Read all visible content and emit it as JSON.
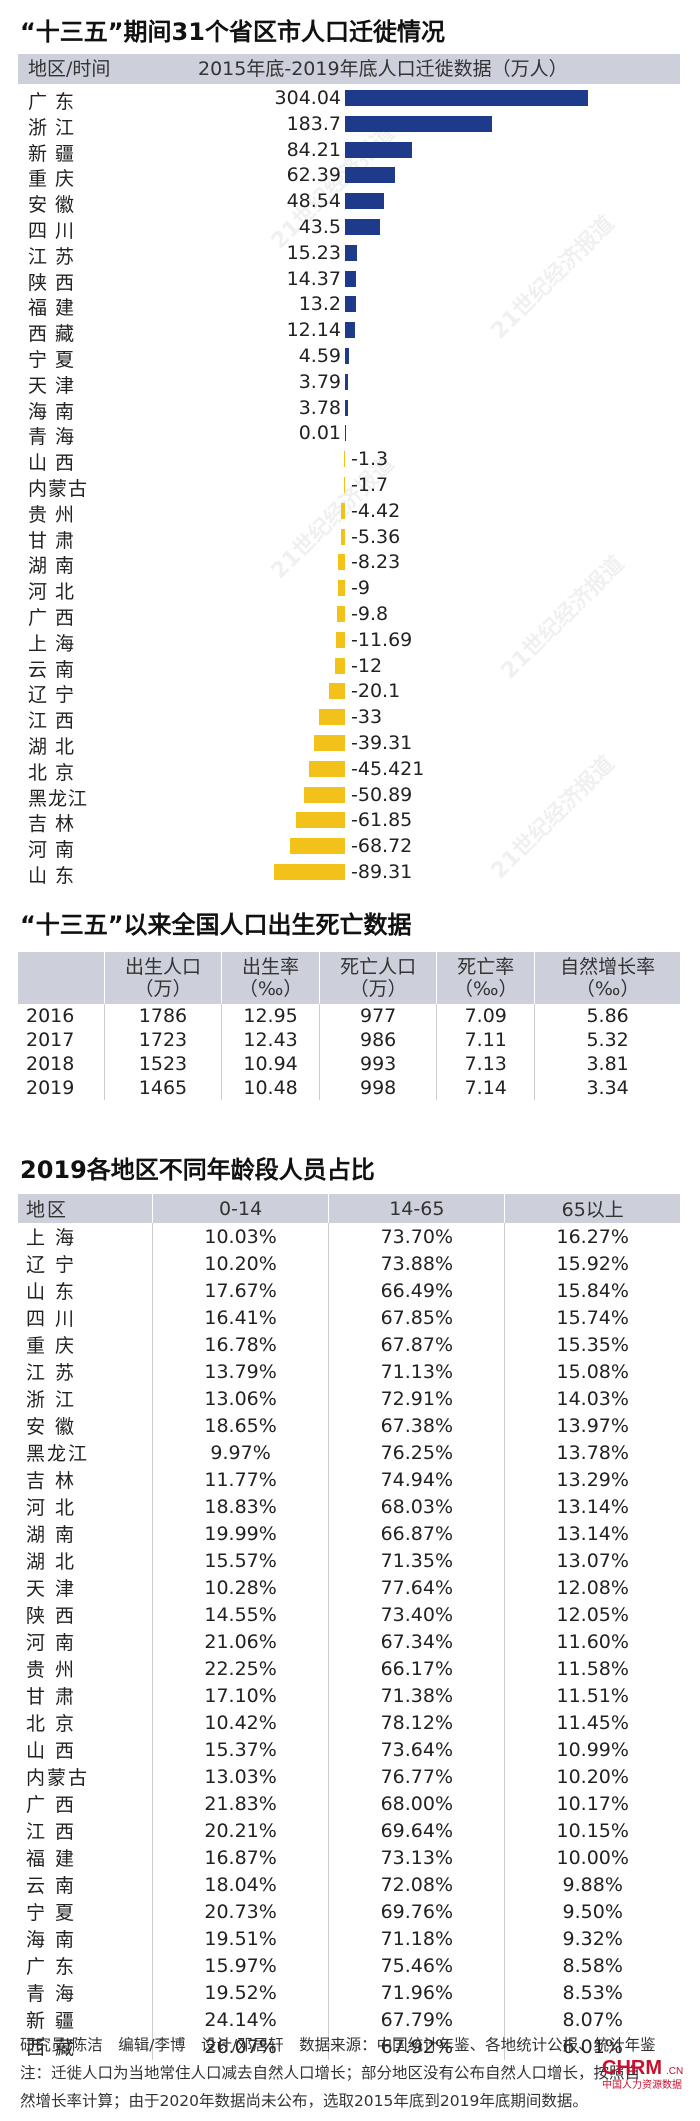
{
  "migration": {
    "title": "“十三五”期间31个省区市人口迁徙情况",
    "col_region": "地区/时间",
    "col_data": "2015年底-2019年底人口迁徙数据（万人）",
    "colors": {
      "positive": "#1e3a8a",
      "negative": "#f2c21b"
    }
  },
  "births": {
    "title": "“十三五”以来全国人口出生死亡数据",
    "headers": [
      {
        "l1": "",
        "l2": ""
      },
      {
        "l1": "出生人口",
        "l2": "（万）"
      },
      {
        "l1": "出生率",
        "l2": "（‰）"
      },
      {
        "l1": "死亡人口",
        "l2": "（万）"
      },
      {
        "l1": "死亡率",
        "l2": "（‰）"
      },
      {
        "l1": "自然增长率",
        "l2": "（‰）"
      }
    ],
    "rows": [
      [
        "2016",
        "1786",
        "12.95",
        "977",
        "7.09",
        "5.86"
      ],
      [
        "2017",
        "1723",
        "12.43",
        "986",
        "7.11",
        "5.32"
      ],
      [
        "2018",
        "1523",
        "10.94",
        "993",
        "7.13",
        "3.81"
      ],
      [
        "2019",
        "1465",
        "10.48",
        "998",
        "7.14",
        "3.34"
      ]
    ]
  },
  "age": {
    "title": "2019各地区不同年龄段人员占比",
    "headers": [
      "地区",
      "0-14",
      "14-65",
      "65以上"
    ],
    "rows": [
      [
        "上 海",
        "10.03%",
        "73.70%",
        "16.27%"
      ],
      [
        "辽 宁",
        "10.20%",
        "73.88%",
        "15.92%"
      ],
      [
        "山 东",
        "17.67%",
        "66.49%",
        "15.84%"
      ],
      [
        "四 川",
        "16.41%",
        "67.85%",
        "15.74%"
      ],
      [
        "重 庆",
        "16.78%",
        "67.87%",
        "15.35%"
      ],
      [
        "江 苏",
        "13.79%",
        "71.13%",
        "15.08%"
      ],
      [
        "浙 江",
        "13.06%",
        "72.91%",
        "14.03%"
      ],
      [
        "安 徽",
        "18.65%",
        "67.38%",
        "13.97%"
      ],
      [
        "黑龙江",
        "9.97%",
        "76.25%",
        "13.78%"
      ],
      [
        "吉 林",
        "11.77%",
        "74.94%",
        "13.29%"
      ],
      [
        "河 北",
        "18.83%",
        "68.03%",
        "13.14%"
      ],
      [
        "湖 南",
        "19.99%",
        "66.87%",
        "13.14%"
      ],
      [
        "湖 北",
        "15.57%",
        "71.35%",
        "13.07%"
      ],
      [
        "天 津",
        "10.28%",
        "77.64%",
        "12.08%"
      ],
      [
        "陕 西",
        "14.55%",
        "73.40%",
        "12.05%"
      ],
      [
        "河 南",
        "21.06%",
        "67.34%",
        "11.60%"
      ],
      [
        "贵 州",
        "22.25%",
        "66.17%",
        "11.58%"
      ],
      [
        "甘 肃",
        "17.10%",
        "71.38%",
        "11.51%"
      ],
      [
        "北 京",
        "10.42%",
        "78.12%",
        "11.45%"
      ],
      [
        "山 西",
        "15.37%",
        "73.64%",
        "10.99%"
      ],
      [
        "内蒙古",
        "13.03%",
        "76.77%",
        "10.20%"
      ],
      [
        "广 西",
        "21.83%",
        "68.00%",
        "10.17%"
      ],
      [
        "江 西",
        "20.21%",
        "69.64%",
        "10.15%"
      ],
      [
        "福 建",
        "16.87%",
        "73.13%",
        "10.00%"
      ],
      [
        "云 南",
        "18.04%",
        "72.08%",
        "9.88%"
      ],
      [
        "宁 夏",
        "20.73%",
        "69.76%",
        "9.50%"
      ],
      [
        "海 南",
        "19.51%",
        "71.18%",
        "9.32%"
      ],
      [
        "广 东",
        "15.97%",
        "75.46%",
        "8.58%"
      ],
      [
        "青 海",
        "19.52%",
        "71.96%",
        "8.53%"
      ],
      [
        "新 疆",
        "24.14%",
        "67.79%",
        "8.07%"
      ],
      [
        "西 藏",
        "26.07%",
        "67.92%",
        "6.01%"
      ]
    ]
  },
  "footer": {
    "line1": "研究员/陈洁　编辑/李博　设计/邓居轩　数据来源：中国统计年鉴、各地统计公报、统计年鉴",
    "line2": "注：迁徙人口为当地常住人口减去自然人口增长；部分地区没有公布自然人口增长，按照自",
    "line3": "然增长率计算；由于2020年数据尚未公布，选取2015年底到2019年底期间数据。"
  },
  "watermark": "21世纪经济报道",
  "logo": {
    "text": "CHRM",
    "suffix": ".CN",
    "sub": "中国人力资源数据"
  },
  "chart_data": {
    "type": "bar",
    "title": "“十三五”期间31个省区市人口迁徙情况",
    "ylabel": "2015年底-2019年底人口迁徙数据（万人）",
    "categories": [
      "广 东",
      "浙 江",
      "新 疆",
      "重 庆",
      "安 徽",
      "四 川",
      "江 苏",
      "陕 西",
      "福 建",
      "西 藏",
      "宁 夏",
      "天 津",
      "海 南",
      "青 海",
      "山 西",
      "内蒙古",
      "贵 州",
      "甘 肃",
      "湖 南",
      "河 北",
      "广 西",
      "上 海",
      "云 南",
      "辽 宁",
      "江 西",
      "湖 北",
      "北 京",
      "黑龙江",
      "吉 林",
      "河 南",
      "山 东"
    ],
    "labels": [
      "304.04",
      "183.7",
      "84.21",
      "62.39",
      "48.54",
      "43.5",
      "15.23",
      "14.37",
      "13.2",
      "12.14",
      "4.59",
      "3.79",
      "3.78",
      "0.01",
      "-1.3",
      "-1.7",
      "-4.42",
      "-5.36",
      "-8.23",
      "-9",
      "-9.8",
      "-11.69",
      "-12",
      "-20.1",
      "-33",
      "-39.31",
      "-45.421",
      "-50.89",
      "-61.85",
      "-68.72",
      "-89.31"
    ],
    "values": [
      304.04,
      183.7,
      84.21,
      62.39,
      48.54,
      43.5,
      15.23,
      14.37,
      13.2,
      12.14,
      4.59,
      3.79,
      3.78,
      0.01,
      -1.3,
      -1.7,
      -4.42,
      -5.36,
      -8.23,
      -9,
      -9.8,
      -11.69,
      -12,
      -20.1,
      -33,
      -39.31,
      -45.421,
      -50.89,
      -61.85,
      -68.72,
      -89.31
    ]
  }
}
